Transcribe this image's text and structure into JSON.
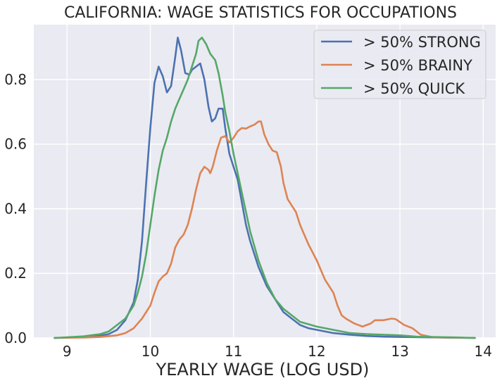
{
  "chart_data": {
    "type": "line",
    "title": "CALIFORNIA: WAGE STATISTICS FOR OCCUPATIONS",
    "xlabel": "YEARLY WAGE (LOG USD)",
    "ylabel": "",
    "xlim": [
      8.6,
      14.15
    ],
    "ylim": [
      0,
      0.97
    ],
    "xticks": [
      9,
      10,
      11,
      12,
      13,
      14
    ],
    "xtick_labels": [
      "9",
      "10",
      "11",
      "12",
      "13",
      "14"
    ],
    "yticks": [
      0.0,
      0.2,
      0.4,
      0.6,
      0.8
    ],
    "ytick_labels": [
      "0.0",
      "0.2",
      "0.4",
      "0.6",
      "0.8"
    ],
    "grid": true,
    "legend_position": "top-right",
    "series": [
      {
        "name": "> 50% STRONG",
        "color": "#4c72b0",
        "points": [
          [
            8.85,
            0.0
          ],
          [
            9.0,
            0.001
          ],
          [
            9.2,
            0.003
          ],
          [
            9.4,
            0.007
          ],
          [
            9.5,
            0.012
          ],
          [
            9.6,
            0.025
          ],
          [
            9.7,
            0.055
          ],
          [
            9.8,
            0.11
          ],
          [
            9.85,
            0.18
          ],
          [
            9.9,
            0.3
          ],
          [
            9.95,
            0.48
          ],
          [
            10.0,
            0.65
          ],
          [
            10.05,
            0.79
          ],
          [
            10.1,
            0.84
          ],
          [
            10.15,
            0.81
          ],
          [
            10.2,
            0.76
          ],
          [
            10.25,
            0.78
          ],
          [
            10.3,
            0.87
          ],
          [
            10.33,
            0.93
          ],
          [
            10.37,
            0.89
          ],
          [
            10.42,
            0.82
          ],
          [
            10.47,
            0.815
          ],
          [
            10.5,
            0.83
          ],
          [
            10.55,
            0.84
          ],
          [
            10.6,
            0.85
          ],
          [
            10.65,
            0.8
          ],
          [
            10.7,
            0.715
          ],
          [
            10.74,
            0.67
          ],
          [
            10.78,
            0.68
          ],
          [
            10.82,
            0.71
          ],
          [
            10.87,
            0.71
          ],
          [
            10.9,
            0.65
          ],
          [
            10.95,
            0.57
          ],
          [
            11.0,
            0.53
          ],
          [
            11.05,
            0.49
          ],
          [
            11.1,
            0.42
          ],
          [
            11.15,
            0.35
          ],
          [
            11.2,
            0.3
          ],
          [
            11.3,
            0.22
          ],
          [
            11.4,
            0.16
          ],
          [
            11.5,
            0.12
          ],
          [
            11.6,
            0.08
          ],
          [
            11.7,
            0.06
          ],
          [
            11.8,
            0.04
          ],
          [
            11.9,
            0.03
          ],
          [
            12.0,
            0.025
          ],
          [
            12.2,
            0.015
          ],
          [
            12.4,
            0.01
          ],
          [
            12.6,
            0.006
          ],
          [
            12.8,
            0.004
          ],
          [
            13.0,
            0.003
          ],
          [
            13.5,
            0.001
          ],
          [
            13.9,
            0.0
          ]
        ]
      },
      {
        "name": "> 50% BRAINY",
        "color": "#dd8452",
        "points": [
          [
            8.85,
            0.0
          ],
          [
            9.2,
            0.001
          ],
          [
            9.4,
            0.003
          ],
          [
            9.6,
            0.008
          ],
          [
            9.7,
            0.015
          ],
          [
            9.8,
            0.03
          ],
          [
            9.9,
            0.06
          ],
          [
            10.0,
            0.1
          ],
          [
            10.05,
            0.14
          ],
          [
            10.1,
            0.175
          ],
          [
            10.15,
            0.19
          ],
          [
            10.2,
            0.2
          ],
          [
            10.25,
            0.23
          ],
          [
            10.3,
            0.28
          ],
          [
            10.35,
            0.305
          ],
          [
            10.4,
            0.32
          ],
          [
            10.45,
            0.35
          ],
          [
            10.5,
            0.4
          ],
          [
            10.55,
            0.46
          ],
          [
            10.6,
            0.51
          ],
          [
            10.65,
            0.53
          ],
          [
            10.7,
            0.52
          ],
          [
            10.72,
            0.51
          ],
          [
            10.75,
            0.53
          ],
          [
            10.8,
            0.58
          ],
          [
            10.85,
            0.62
          ],
          [
            10.9,
            0.625
          ],
          [
            10.95,
            0.605
          ],
          [
            11.0,
            0.62
          ],
          [
            11.05,
            0.64
          ],
          [
            11.1,
            0.65
          ],
          [
            11.15,
            0.648
          ],
          [
            11.2,
            0.655
          ],
          [
            11.25,
            0.66
          ],
          [
            11.3,
            0.67
          ],
          [
            11.33,
            0.67
          ],
          [
            11.37,
            0.63
          ],
          [
            11.42,
            0.6
          ],
          [
            11.47,
            0.58
          ],
          [
            11.52,
            0.575
          ],
          [
            11.57,
            0.53
          ],
          [
            11.6,
            0.48
          ],
          [
            11.65,
            0.43
          ],
          [
            11.7,
            0.41
          ],
          [
            11.75,
            0.39
          ],
          [
            11.8,
            0.35
          ],
          [
            11.85,
            0.32
          ],
          [
            11.9,
            0.29
          ],
          [
            12.0,
            0.24
          ],
          [
            12.05,
            0.21
          ],
          [
            12.1,
            0.18
          ],
          [
            12.15,
            0.16
          ],
          [
            12.2,
            0.14
          ],
          [
            12.25,
            0.1
          ],
          [
            12.3,
            0.07
          ],
          [
            12.35,
            0.06
          ],
          [
            12.45,
            0.045
          ],
          [
            12.55,
            0.035
          ],
          [
            12.65,
            0.045
          ],
          [
            12.7,
            0.055
          ],
          [
            12.8,
            0.055
          ],
          [
            12.9,
            0.06
          ],
          [
            12.95,
            0.058
          ],
          [
            13.05,
            0.04
          ],
          [
            13.15,
            0.03
          ],
          [
            13.25,
            0.01
          ],
          [
            13.4,
            0.002
          ],
          [
            13.9,
            0.0
          ]
        ]
      },
      {
        "name": "> 50% QUICK",
        "color": "#55a868",
        "points": [
          [
            8.85,
            0.0
          ],
          [
            9.0,
            0.002
          ],
          [
            9.2,
            0.005
          ],
          [
            9.4,
            0.012
          ],
          [
            9.5,
            0.02
          ],
          [
            9.6,
            0.04
          ],
          [
            9.7,
            0.06
          ],
          [
            9.8,
            0.1
          ],
          [
            9.85,
            0.14
          ],
          [
            9.9,
            0.19
          ],
          [
            9.95,
            0.26
          ],
          [
            10.0,
            0.35
          ],
          [
            10.05,
            0.44
          ],
          [
            10.1,
            0.52
          ],
          [
            10.15,
            0.58
          ],
          [
            10.2,
            0.62
          ],
          [
            10.25,
            0.67
          ],
          [
            10.3,
            0.71
          ],
          [
            10.35,
            0.74
          ],
          [
            10.4,
            0.77
          ],
          [
            10.45,
            0.8
          ],
          [
            10.5,
            0.84
          ],
          [
            10.55,
            0.88
          ],
          [
            10.58,
            0.92
          ],
          [
            10.62,
            0.93
          ],
          [
            10.67,
            0.91
          ],
          [
            10.72,
            0.88
          ],
          [
            10.78,
            0.86
          ],
          [
            10.82,
            0.82
          ],
          [
            10.87,
            0.75
          ],
          [
            10.9,
            0.7
          ],
          [
            10.95,
            0.64
          ],
          [
            11.0,
            0.57
          ],
          [
            11.05,
            0.51
          ],
          [
            11.1,
            0.45
          ],
          [
            11.15,
            0.39
          ],
          [
            11.2,
            0.33
          ],
          [
            11.3,
            0.24
          ],
          [
            11.4,
            0.17
          ],
          [
            11.5,
            0.12
          ],
          [
            11.6,
            0.09
          ],
          [
            11.7,
            0.07
          ],
          [
            11.8,
            0.05
          ],
          [
            12.0,
            0.035
          ],
          [
            12.2,
            0.025
          ],
          [
            12.4,
            0.015
          ],
          [
            12.6,
            0.012
          ],
          [
            12.8,
            0.01
          ],
          [
            13.0,
            0.008
          ],
          [
            13.2,
            0.004
          ],
          [
            13.6,
            0.002
          ],
          [
            13.9,
            0.0
          ]
        ]
      }
    ]
  }
}
